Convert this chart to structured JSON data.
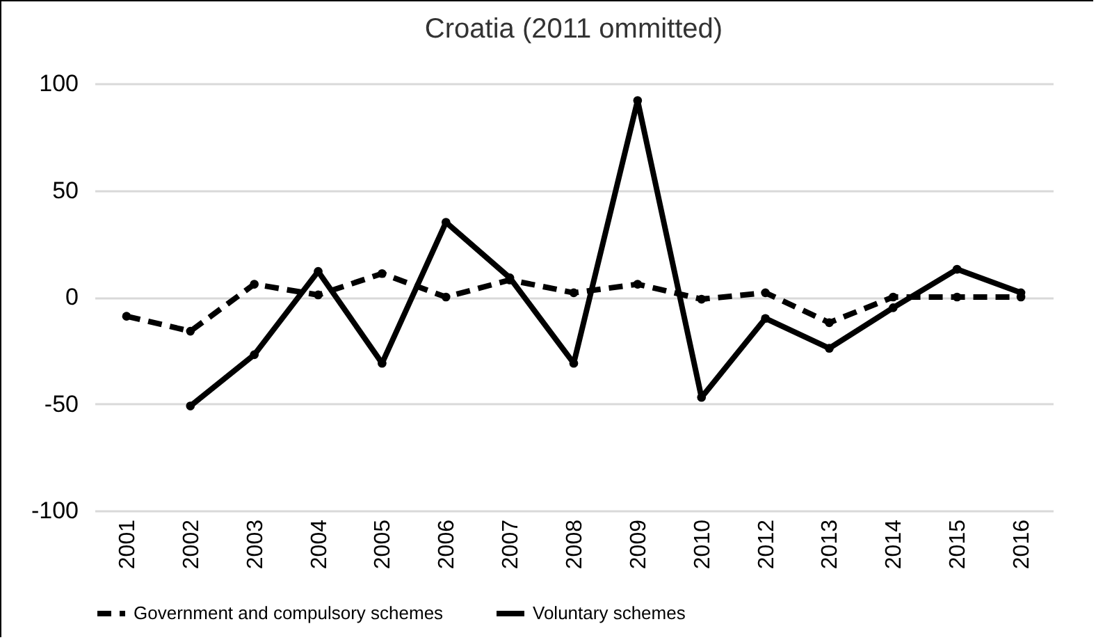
{
  "chart_data": {
    "type": "line",
    "title": "Croatia (2011 ommitted)",
    "categories": [
      "2001",
      "2002",
      "2003",
      "2004",
      "2005",
      "2006",
      "2007",
      "2008",
      "2009",
      "2010",
      "2012",
      "2013",
      "2014",
      "2015",
      "2016"
    ],
    "series": [
      {
        "name": "Government and compulsory schemes",
        "color": "#000000",
        "line_style": "dashed",
        "values": [
          -9,
          -16,
          6,
          1,
          11,
          0,
          8,
          2,
          6,
          -1,
          2,
          -12,
          0,
          0,
          0
        ]
      },
      {
        "name": "Voluntary schemes",
        "color": "#000000",
        "line_style": "solid",
        "values": [
          null,
          -51,
          -27,
          12,
          -31,
          35,
          9,
          -31,
          92,
          -47,
          -10,
          -24,
          -5,
          13,
          2
        ]
      }
    ],
    "ylim": [
      -100,
      100
    ],
    "yticks": [
      -100,
      -50,
      0,
      50,
      100
    ],
    "grid": "y",
    "legend": "bottom",
    "marker": "circle"
  }
}
